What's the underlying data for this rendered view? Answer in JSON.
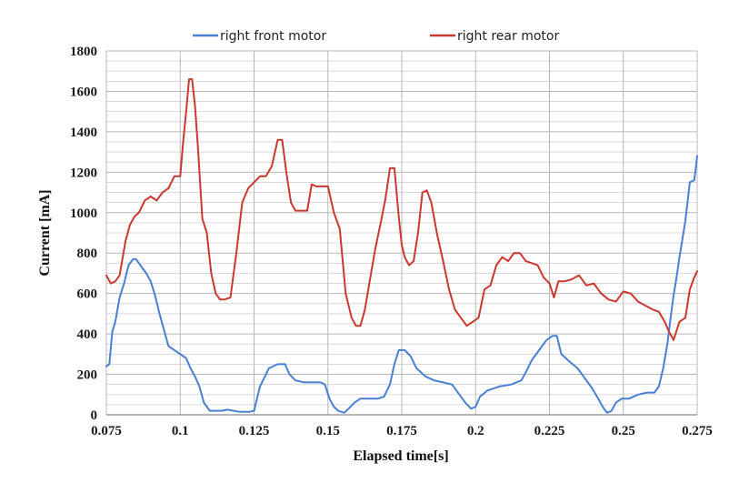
{
  "chart_data": {
    "type": "line",
    "title": "",
    "xlabel": "Elapsed time[s]",
    "ylabel": "Current [mA]",
    "xlim": [
      0.075,
      0.275
    ],
    "ylim": [
      0,
      1800
    ],
    "x_ticks": [
      0.075,
      0.1,
      0.125,
      0.15,
      0.175,
      0.2,
      0.225,
      0.25,
      0.275
    ],
    "x_tick_labels": [
      "0.075",
      "0.1",
      "0.125",
      "0.15",
      "0.175",
      "0.2",
      "0.225",
      "0.25",
      "0.275"
    ],
    "y_ticks": [
      0,
      200,
      400,
      600,
      800,
      1000,
      1200,
      1400,
      1600,
      1800
    ],
    "y_tick_labels": [
      "0",
      "200",
      "400",
      "600",
      "800",
      "1000",
      "1200",
      "1400",
      "1600",
      "1800"
    ],
    "grid": true,
    "legend_position": "top",
    "series": [
      {
        "name": "right front motor",
        "color": "#4a7fd4",
        "x": [
          0.075,
          0.076,
          0.077,
          0.078,
          0.0795,
          0.081,
          0.0825,
          0.084,
          0.085,
          0.086,
          0.0875,
          0.0885,
          0.09,
          0.0915,
          0.093,
          0.0945,
          0.096,
          0.098,
          0.1,
          0.102,
          0.1035,
          0.105,
          0.1065,
          0.108,
          0.11,
          0.112,
          0.114,
          0.116,
          0.118,
          0.12,
          0.122,
          0.1235,
          0.125,
          0.127,
          0.13,
          0.133,
          0.1355,
          0.137,
          0.139,
          0.142,
          0.145,
          0.1475,
          0.149,
          0.1505,
          0.152,
          0.1535,
          0.1555,
          0.157,
          0.159,
          0.161,
          0.163,
          0.165,
          0.167,
          0.169,
          0.171,
          0.1725,
          0.174,
          0.176,
          0.178,
          0.18,
          0.183,
          0.186,
          0.189,
          0.192,
          0.1945,
          0.1965,
          0.1985,
          0.2,
          0.2015,
          0.204,
          0.208,
          0.212,
          0.2155,
          0.217,
          0.219,
          0.221,
          0.2225,
          0.224,
          0.226,
          0.2275,
          0.229,
          0.232,
          0.2345,
          0.237,
          0.2395,
          0.2415,
          0.243,
          0.2445,
          0.246,
          0.2475,
          0.2495,
          0.252,
          0.255,
          0.258,
          0.2605,
          0.262,
          0.2635,
          0.265,
          0.266,
          0.267,
          0.268,
          0.269,
          0.27,
          0.271,
          0.2725,
          0.274,
          0.275
        ],
        "values": [
          240,
          250,
          410,
          460,
          580,
          650,
          740,
          770,
          770,
          750,
          720,
          700,
          660,
          590,
          500,
          420,
          340,
          320,
          300,
          280,
          230,
          190,
          140,
          60,
          20,
          20,
          20,
          25,
          20,
          15,
          15,
          15,
          20,
          140,
          230,
          250,
          250,
          200,
          170,
          160,
          160,
          160,
          150,
          80,
          40,
          20,
          10,
          30,
          60,
          80,
          80,
          80,
          80,
          90,
          150,
          250,
          320,
          320,
          290,
          230,
          190,
          170,
          160,
          150,
          100,
          60,
          30,
          40,
          90,
          120,
          140,
          150,
          170,
          210,
          270,
          310,
          340,
          370,
          390,
          390,
          300,
          260,
          230,
          180,
          130,
          80,
          40,
          10,
          20,
          60,
          80,
          80,
          100,
          110,
          110,
          140,
          230,
          360,
          480,
          590,
          680,
          780,
          870,
          960,
          1150,
          1160,
          1280
        ]
      },
      {
        "name": "right rear motor",
        "color": "#c9392f",
        "x": [
          0.075,
          0.0765,
          0.078,
          0.0795,
          0.0815,
          0.083,
          0.0845,
          0.086,
          0.088,
          0.09,
          0.092,
          0.094,
          0.096,
          0.098,
          0.1,
          0.101,
          0.102,
          0.103,
          0.104,
          0.105,
          0.106,
          0.1075,
          0.109,
          0.1105,
          0.112,
          0.1135,
          0.115,
          0.117,
          0.119,
          0.121,
          0.123,
          0.125,
          0.127,
          0.129,
          0.131,
          0.133,
          0.1345,
          0.136,
          0.1375,
          0.139,
          0.141,
          0.143,
          0.1445,
          0.146,
          0.148,
          0.15,
          0.152,
          0.154,
          0.156,
          0.158,
          0.1595,
          0.161,
          0.1625,
          0.164,
          0.166,
          0.168,
          0.1695,
          0.171,
          0.1725,
          0.174,
          0.175,
          0.176,
          0.1775,
          0.179,
          0.1805,
          0.182,
          0.1835,
          0.185,
          0.187,
          0.189,
          0.191,
          0.193,
          0.195,
          0.197,
          0.199,
          0.201,
          0.203,
          0.205,
          0.207,
          0.209,
          0.211,
          0.213,
          0.215,
          0.217,
          0.219,
          0.221,
          0.223,
          0.225,
          0.2265,
          0.228,
          0.23,
          0.2325,
          0.235,
          0.2375,
          0.24,
          0.2425,
          0.245,
          0.2475,
          0.25,
          0.2525,
          0.255,
          0.2575,
          0.26,
          0.262,
          0.264,
          0.2655,
          0.267,
          0.269,
          0.271,
          0.2725,
          0.274,
          0.275
        ],
        "values": [
          690,
          650,
          660,
          690,
          860,
          940,
          980,
          1000,
          1060,
          1080,
          1060,
          1100,
          1120,
          1180,
          1180,
          1350,
          1500,
          1660,
          1660,
          1530,
          1320,
          970,
          900,
          700,
          600,
          570,
          570,
          580,
          800,
          1050,
          1120,
          1150,
          1180,
          1180,
          1230,
          1360,
          1360,
          1190,
          1050,
          1010,
          1010,
          1010,
          1140,
          1130,
          1130,
          1130,
          1000,
          920,
          600,
          480,
          440,
          440,
          520,
          650,
          820,
          960,
          1070,
          1220,
          1220,
          980,
          840,
          780,
          740,
          760,
          900,
          1100,
          1110,
          1050,
          890,
          760,
          620,
          520,
          480,
          440,
          460,
          480,
          620,
          640,
          740,
          780,
          760,
          800,
          800,
          760,
          750,
          740,
          680,
          650,
          580,
          660,
          660,
          670,
          690,
          640,
          650,
          600,
          570,
          560,
          610,
          600,
          560,
          540,
          520,
          510,
          460,
          410,
          370,
          460,
          480,
          620,
          680,
          710
        ]
      }
    ]
  }
}
